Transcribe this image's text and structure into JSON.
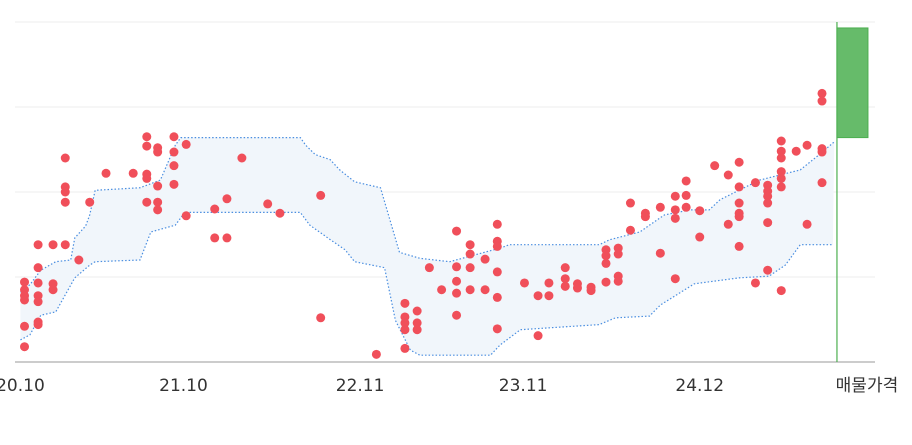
{
  "chart_data": {
    "type": "scatter",
    "xlim": [
      -0.4,
      62.9
    ],
    "ylim": [
      0,
      40
    ],
    "gridlines": [
      10,
      20,
      30,
      40
    ],
    "xticks": [
      {
        "value": 0,
        "label": "20.10"
      },
      {
        "value": 12,
        "label": "21.10"
      },
      {
        "value": 25,
        "label": "22.11"
      },
      {
        "value": 37,
        "label": "23.11"
      },
      {
        "value": 50,
        "label": "24.12"
      }
    ],
    "points": {
      "color": "#f04f5a",
      "x": [
        0.3,
        0.3,
        0.3,
        0.3,
        0.3,
        0.3,
        1.3,
        1.3,
        1.3,
        1.3,
        1.3,
        1.3,
        1.3,
        2.4,
        2.4,
        2.4,
        3.3,
        3.3,
        3.3,
        3.3,
        3.3,
        4.3,
        5.1,
        6.3,
        8.3,
        9.3,
        9.3,
        9.3,
        9.3,
        9.3,
        10.1,
        10.1,
        10.1,
        10.1,
        10.1,
        11.3,
        11.3,
        11.3,
        11.3,
        12.2,
        12.2,
        14.3,
        14.3,
        15.2,
        15.2,
        16.3,
        18.2,
        19.1,
        22.1,
        22.1,
        26.2,
        28.3,
        28.3,
        28.3,
        28.3,
        28.3,
        29.2,
        29.2,
        29.2,
        30.1,
        31.0,
        32.1,
        32.1,
        32.1,
        32.1,
        32.1,
        33.1,
        33.1,
        33.1,
        33.1,
        34.2,
        34.2,
        35.1,
        35.1,
        35.1,
        35.1,
        35.1,
        35.1,
        37.1,
        38.1,
        38.1,
        38.9,
        38.9,
        40.1,
        40.1,
        40.1,
        41.0,
        41.0,
        42.0,
        42.0,
        43.1,
        43.1,
        43.1,
        43.1,
        44.0,
        44.0,
        44.0,
        44.0,
        44.9,
        44.9,
        46.0,
        46.0,
        47.1,
        47.1,
        48.2,
        48.2,
        48.2,
        48.2,
        49.0,
        49.0,
        49.0,
        50.0,
        50.0,
        51.1,
        52.1,
        52.1,
        52.9,
        52.9,
        52.9,
        52.9,
        52.9,
        52.9,
        54.1,
        54.1,
        55.0,
        55.0,
        55.0,
        55.0,
        55.0,
        55.0,
        56.0,
        56.0,
        56.0,
        56.0,
        56.0,
        56.0,
        56.0,
        57.1,
        57.9,
        57.9,
        59.0,
        59.0,
        59.0,
        59.0,
        59.0
      ],
      "y": [
        9.4,
        8.5,
        7.8,
        7.3,
        4.2,
        1.8,
        13.8,
        11.1,
        9.3,
        7.8,
        7.1,
        4.7,
        4.4,
        13.8,
        9.2,
        8.5,
        24.0,
        20.6,
        20.0,
        18.8,
        13.8,
        12.0,
        18.8,
        22.2,
        22.2,
        26.5,
        25.4,
        22.1,
        21.6,
        18.8,
        25.2,
        24.7,
        20.7,
        18.8,
        17.9,
        26.5,
        24.7,
        23.1,
        20.9,
        25.6,
        17.2,
        18.0,
        14.6,
        19.2,
        14.6,
        24.0,
        18.6,
        17.5,
        19.6,
        5.2,
        0.9,
        6.9,
        5.3,
        4.6,
        3.8,
        1.6,
        6.0,
        4.6,
        3.8,
        11.1,
        8.5,
        15.4,
        11.2,
        9.5,
        8.1,
        5.5,
        13.8,
        12.7,
        11.1,
        8.5,
        12.1,
        8.5,
        16.2,
        14.2,
        13.6,
        10.6,
        7.6,
        3.9,
        9.3,
        7.8,
        3.1,
        9.3,
        7.8,
        11.1,
        9.8,
        8.9,
        9.2,
        8.7,
        8.8,
        8.4,
        13.2,
        12.5,
        11.6,
        9.4,
        13.4,
        12.7,
        10.1,
        9.5,
        18.7,
        15.5,
        17.5,
        17.1,
        18.2,
        12.8,
        19.5,
        17.9,
        16.9,
        9.8,
        21.3,
        19.6,
        18.2,
        17.8,
        14.7,
        23.1,
        22.0,
        16.2,
        23.5,
        20.6,
        18.7,
        17.5,
        17.1,
        13.6,
        21.1,
        9.3,
        20.8,
        20.1,
        19.5,
        18.7,
        16.4,
        10.8,
        26.0,
        24.8,
        24.0,
        22.4,
        21.6,
        20.6,
        8.4,
        24.8,
        25.5,
        16.2,
        31.6,
        30.7,
        25.1,
        24.7,
        21.1
      ]
    },
    "band": {
      "color": "#4a8ee0",
      "fill": "#f1f6fb",
      "upper": {
        "x": [
          0,
          0.7,
          1.5,
          2.6,
          3.7,
          4.0,
          4.8,
          5.1,
          5.5,
          8.8,
          10.3,
          11.4,
          11.8,
          20.6,
          21.0,
          21.7,
          22.8,
          23.5,
          24.6,
          26.5,
          27.2,
          27.9,
          29.4,
          31.6,
          35.3,
          36.0,
          42.6,
          43.4,
          45.6,
          46.3,
          47.4,
          49.3,
          50.7,
          51.5,
          54.4,
          57.4,
          58.8,
          59.9
        ],
        "values": [
          8.2,
          9.1,
          10.8,
          11.8,
          12.0,
          14.6,
          16.0,
          17.3,
          20.2,
          20.5,
          21.4,
          25.5,
          26.4,
          26.4,
          25.5,
          24.4,
          23.8,
          22.6,
          21.2,
          20.5,
          16.7,
          12.9,
          12.2,
          11.8,
          13.4,
          13.8,
          13.8,
          14.4,
          15.3,
          16.1,
          17.3,
          17.9,
          17.9,
          19.1,
          21.4,
          22.6,
          24.4,
          25.9
        ]
      },
      "lower": {
        "x": [
          0,
          0.7,
          1.5,
          2.6,
          4.0,
          5.1,
          5.5,
          8.8,
          9.6,
          11.4,
          12.1,
          20.6,
          21.3,
          22.8,
          23.9,
          24.6,
          26.8,
          27.6,
          28.7,
          29.4,
          34.6,
          35.3,
          36.8,
          42.6,
          43.8,
          46.3,
          47.1,
          48.9,
          49.6,
          52.9,
          55.1,
          56.3,
          57.4,
          59.8
        ],
        "values": [
          2.6,
          3.2,
          5.5,
          5.9,
          9.9,
          11.4,
          11.8,
          12.0,
          15.3,
          16.1,
          17.6,
          17.6,
          16.1,
          14.4,
          13.2,
          11.8,
          11.1,
          4.9,
          1.4,
          0.8,
          0.8,
          2.0,
          3.8,
          4.4,
          5.2,
          5.4,
          6.7,
          8.5,
          9.2,
          9.9,
          10.1,
          11.4,
          13.8,
          13.8
        ]
      }
    },
    "listing": {
      "label": "매물가격",
      "x": 60.1,
      "low": 26.4,
      "high": 39.3,
      "color": "#66bb6a",
      "line_color": "#4caf50"
    }
  }
}
